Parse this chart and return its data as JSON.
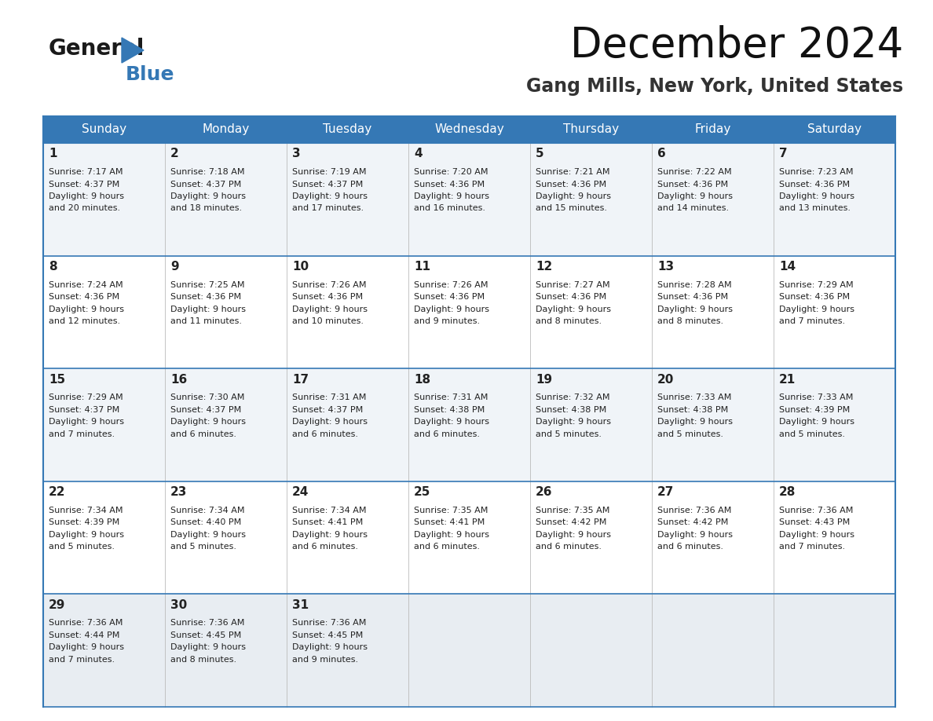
{
  "title": "December 2024",
  "subtitle": "Gang Mills, New York, United States",
  "header_bg": "#3578b5",
  "header_text": "#ffffff",
  "border_color": "#3578b5",
  "text_color": "#222222",
  "days_of_week": [
    "Sunday",
    "Monday",
    "Tuesday",
    "Wednesday",
    "Thursday",
    "Friday",
    "Saturday"
  ],
  "weeks": [
    [
      {
        "day": 1,
        "sunrise": "7:17 AM",
        "sunset": "4:37 PM",
        "daylight": "9 hours",
        "daylight2": "and 20 minutes."
      },
      {
        "day": 2,
        "sunrise": "7:18 AM",
        "sunset": "4:37 PM",
        "daylight": "9 hours",
        "daylight2": "and 18 minutes."
      },
      {
        "day": 3,
        "sunrise": "7:19 AM",
        "sunset": "4:37 PM",
        "daylight": "9 hours",
        "daylight2": "and 17 minutes."
      },
      {
        "day": 4,
        "sunrise": "7:20 AM",
        "sunset": "4:36 PM",
        "daylight": "9 hours",
        "daylight2": "and 16 minutes."
      },
      {
        "day": 5,
        "sunrise": "7:21 AM",
        "sunset": "4:36 PM",
        "daylight": "9 hours",
        "daylight2": "and 15 minutes."
      },
      {
        "day": 6,
        "sunrise": "7:22 AM",
        "sunset": "4:36 PM",
        "daylight": "9 hours",
        "daylight2": "and 14 minutes."
      },
      {
        "day": 7,
        "sunrise": "7:23 AM",
        "sunset": "4:36 PM",
        "daylight": "9 hours",
        "daylight2": "and 13 minutes."
      }
    ],
    [
      {
        "day": 8,
        "sunrise": "7:24 AM",
        "sunset": "4:36 PM",
        "daylight": "9 hours",
        "daylight2": "and 12 minutes."
      },
      {
        "day": 9,
        "sunrise": "7:25 AM",
        "sunset": "4:36 PM",
        "daylight": "9 hours",
        "daylight2": "and 11 minutes."
      },
      {
        "day": 10,
        "sunrise": "7:26 AM",
        "sunset": "4:36 PM",
        "daylight": "9 hours",
        "daylight2": "and 10 minutes."
      },
      {
        "day": 11,
        "sunrise": "7:26 AM",
        "sunset": "4:36 PM",
        "daylight": "9 hours",
        "daylight2": "and 9 minutes."
      },
      {
        "day": 12,
        "sunrise": "7:27 AM",
        "sunset": "4:36 PM",
        "daylight": "9 hours",
        "daylight2": "and 8 minutes."
      },
      {
        "day": 13,
        "sunrise": "7:28 AM",
        "sunset": "4:36 PM",
        "daylight": "9 hours",
        "daylight2": "and 8 minutes."
      },
      {
        "day": 14,
        "sunrise": "7:29 AM",
        "sunset": "4:36 PM",
        "daylight": "9 hours",
        "daylight2": "and 7 minutes."
      }
    ],
    [
      {
        "day": 15,
        "sunrise": "7:29 AM",
        "sunset": "4:37 PM",
        "daylight": "9 hours",
        "daylight2": "and 7 minutes."
      },
      {
        "day": 16,
        "sunrise": "7:30 AM",
        "sunset": "4:37 PM",
        "daylight": "9 hours",
        "daylight2": "and 6 minutes."
      },
      {
        "day": 17,
        "sunrise": "7:31 AM",
        "sunset": "4:37 PM",
        "daylight": "9 hours",
        "daylight2": "and 6 minutes."
      },
      {
        "day": 18,
        "sunrise": "7:31 AM",
        "sunset": "4:38 PM",
        "daylight": "9 hours",
        "daylight2": "and 6 minutes."
      },
      {
        "day": 19,
        "sunrise": "7:32 AM",
        "sunset": "4:38 PM",
        "daylight": "9 hours",
        "daylight2": "and 5 minutes."
      },
      {
        "day": 20,
        "sunrise": "7:33 AM",
        "sunset": "4:38 PM",
        "daylight": "9 hours",
        "daylight2": "and 5 minutes."
      },
      {
        "day": 21,
        "sunrise": "7:33 AM",
        "sunset": "4:39 PM",
        "daylight": "9 hours",
        "daylight2": "and 5 minutes."
      }
    ],
    [
      {
        "day": 22,
        "sunrise": "7:34 AM",
        "sunset": "4:39 PM",
        "daylight": "9 hours",
        "daylight2": "and 5 minutes."
      },
      {
        "day": 23,
        "sunrise": "7:34 AM",
        "sunset": "4:40 PM",
        "daylight": "9 hours",
        "daylight2": "and 5 minutes."
      },
      {
        "day": 24,
        "sunrise": "7:34 AM",
        "sunset": "4:41 PM",
        "daylight": "9 hours",
        "daylight2": "and 6 minutes."
      },
      {
        "day": 25,
        "sunrise": "7:35 AM",
        "sunset": "4:41 PM",
        "daylight": "9 hours",
        "daylight2": "and 6 minutes."
      },
      {
        "day": 26,
        "sunrise": "7:35 AM",
        "sunset": "4:42 PM",
        "daylight": "9 hours",
        "daylight2": "and 6 minutes."
      },
      {
        "day": 27,
        "sunrise": "7:36 AM",
        "sunset": "4:42 PM",
        "daylight": "9 hours",
        "daylight2": "and 6 minutes."
      },
      {
        "day": 28,
        "sunrise": "7:36 AM",
        "sunset": "4:43 PM",
        "daylight": "9 hours",
        "daylight2": "and 7 minutes."
      }
    ],
    [
      {
        "day": 29,
        "sunrise": "7:36 AM",
        "sunset": "4:44 PM",
        "daylight": "9 hours",
        "daylight2": "and 7 minutes."
      },
      {
        "day": 30,
        "sunrise": "7:36 AM",
        "sunset": "4:45 PM",
        "daylight": "9 hours",
        "daylight2": "and 8 minutes."
      },
      {
        "day": 31,
        "sunrise": "7:36 AM",
        "sunset": "4:45 PM",
        "daylight": "9 hours",
        "daylight2": "and 9 minutes."
      },
      null,
      null,
      null,
      null
    ]
  ]
}
